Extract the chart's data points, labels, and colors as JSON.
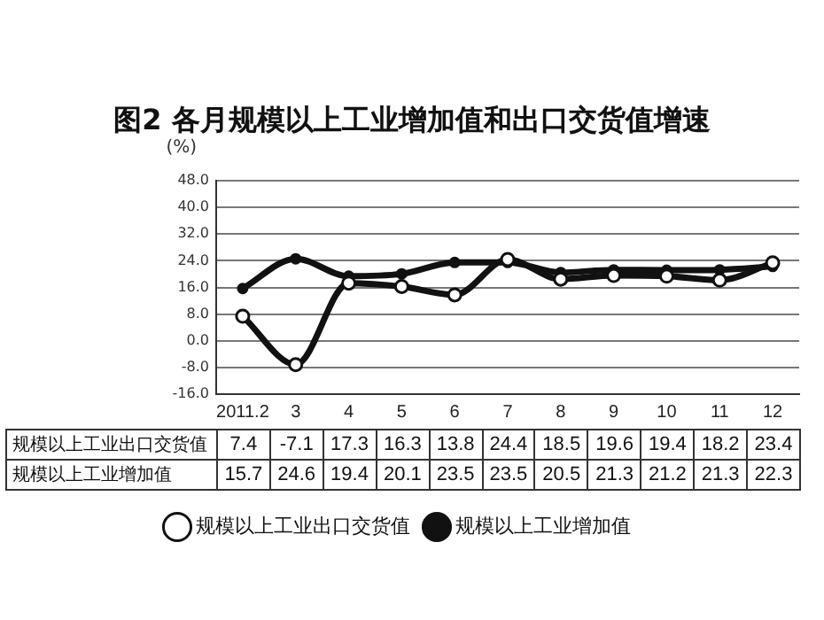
{
  "chart_data": {
    "type": "line",
    "title": "图2  各月规模以上工业增加值和出口交货值增速",
    "ylabel": "(%)",
    "categories": [
      "2011.2",
      "3",
      "4",
      "5",
      "6",
      "7",
      "8",
      "9",
      "10",
      "11",
      "12"
    ],
    "series": [
      {
        "name": "规模以上工业出口交货值",
        "color": "#111111",
        "values": [
          7.4,
          -7.1,
          17.3,
          16.3,
          13.8,
          24.4,
          18.5,
          19.6,
          19.4,
          18.2,
          23.4
        ]
      },
      {
        "name": "规模以上工业增加值",
        "color": "#111111",
        "values": [
          15.7,
          24.6,
          19.4,
          20.1,
          23.5,
          23.5,
          20.5,
          21.3,
          21.2,
          21.3,
          22.3
        ]
      }
    ],
    "ylim": [
      -16,
      48
    ],
    "yticks": [
      {
        "value": -16,
        "label": "-16.0"
      },
      {
        "value": -8,
        "label": "-8.0"
      },
      {
        "value": 0,
        "label": "0.0"
      },
      {
        "value": 8,
        "label": "8.0"
      },
      {
        "value": 16,
        "label": "16.0"
      },
      {
        "value": 24,
        "label": "24.0"
      },
      {
        "value": 32,
        "label": "32.0"
      },
      {
        "value": 40,
        "label": "40.0"
      },
      {
        "value": 48,
        "label": "48.0"
      }
    ],
    "grid": "y",
    "legend": "bottom",
    "marker": "circle",
    "line_style": "solid",
    "data_labels": true
  }
}
